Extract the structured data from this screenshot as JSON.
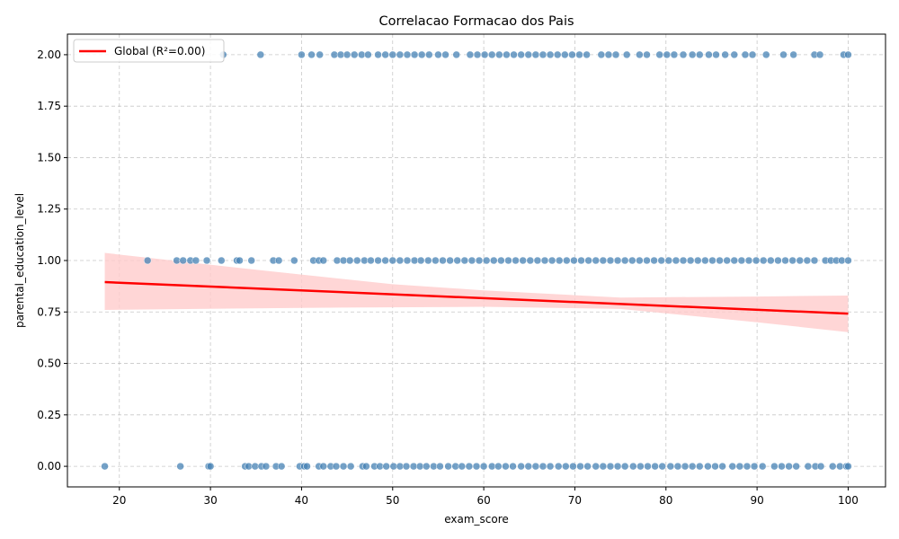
{
  "chart_data": {
    "type": "scatter",
    "title": "Correlacao Formacao dos Pais",
    "xlabel": "exam_score",
    "ylabel": "parental_education_level",
    "xlim": [
      14.3,
      104.1
    ],
    "ylim": [
      -0.1,
      2.1
    ],
    "xticks": [
      "20",
      "30",
      "40",
      "50",
      "60",
      "70",
      "80",
      "90",
      "100"
    ],
    "yticks": [
      "0.00",
      "0.25",
      "0.50",
      "0.75",
      "1.00",
      "1.25",
      "1.50",
      "1.75",
      "2.00"
    ],
    "grid": true,
    "legend_position": "top-left",
    "colors": {
      "points": "#4682b4",
      "line": "#ff0000",
      "band": "#ffcccc"
    },
    "series": [
      {
        "name": "",
        "type": "scatter",
        "points": [
          {
            "x": 18.4,
            "y": 0
          },
          {
            "x": 26.7,
            "y": 0
          },
          {
            "x": 29.8,
            "y": 0
          },
          {
            "x": 30.0,
            "y": 0
          },
          {
            "x": 33.8,
            "y": 0
          },
          {
            "x": 34.2,
            "y": 0
          },
          {
            "x": 34.9,
            "y": 0
          },
          {
            "x": 35.6,
            "y": 0
          },
          {
            "x": 36.1,
            "y": 0
          },
          {
            "x": 37.2,
            "y": 0
          },
          {
            "x": 37.8,
            "y": 0
          },
          {
            "x": 39.8,
            "y": 0
          },
          {
            "x": 40.3,
            "y": 0
          },
          {
            "x": 40.6,
            "y": 0
          },
          {
            "x": 41.9,
            "y": 0
          },
          {
            "x": 42.4,
            "y": 0
          },
          {
            "x": 43.2,
            "y": 0
          },
          {
            "x": 43.8,
            "y": 0
          },
          {
            "x": 44.6,
            "y": 0
          },
          {
            "x": 45.4,
            "y": 0
          },
          {
            "x": 46.7,
            "y": 0
          },
          {
            "x": 47.1,
            "y": 0
          },
          {
            "x": 48.0,
            "y": 0
          },
          {
            "x": 48.6,
            "y": 0
          },
          {
            "x": 49.3,
            "y": 0
          },
          {
            "x": 50.1,
            "y": 0
          },
          {
            "x": 50.8,
            "y": 0
          },
          {
            "x": 51.5,
            "y": 0
          },
          {
            "x": 52.3,
            "y": 0
          },
          {
            "x": 53.0,
            "y": 0
          },
          {
            "x": 53.7,
            "y": 0
          },
          {
            "x": 54.5,
            "y": 0
          },
          {
            "x": 55.2,
            "y": 0
          },
          {
            "x": 56.1,
            "y": 0
          },
          {
            "x": 56.9,
            "y": 0
          },
          {
            "x": 57.6,
            "y": 0
          },
          {
            "x": 58.4,
            "y": 0
          },
          {
            "x": 59.2,
            "y": 0
          },
          {
            "x": 60.0,
            "y": 0
          },
          {
            "x": 60.9,
            "y": 0
          },
          {
            "x": 61.6,
            "y": 0
          },
          {
            "x": 62.4,
            "y": 0
          },
          {
            "x": 63.2,
            "y": 0
          },
          {
            "x": 64.1,
            "y": 0
          },
          {
            "x": 64.9,
            "y": 0
          },
          {
            "x": 65.7,
            "y": 0
          },
          {
            "x": 66.5,
            "y": 0
          },
          {
            "x": 67.3,
            "y": 0
          },
          {
            "x": 68.2,
            "y": 0
          },
          {
            "x": 69.0,
            "y": 0
          },
          {
            "x": 69.8,
            "y": 0
          },
          {
            "x": 70.6,
            "y": 0
          },
          {
            "x": 71.4,
            "y": 0
          },
          {
            "x": 72.3,
            "y": 0
          },
          {
            "x": 73.1,
            "y": 0
          },
          {
            "x": 73.9,
            "y": 0
          },
          {
            "x": 74.7,
            "y": 0
          },
          {
            "x": 75.5,
            "y": 0
          },
          {
            "x": 76.4,
            "y": 0
          },
          {
            "x": 77.2,
            "y": 0
          },
          {
            "x": 78.0,
            "y": 0
          },
          {
            "x": 78.8,
            "y": 0
          },
          {
            "x": 79.6,
            "y": 0
          },
          {
            "x": 80.5,
            "y": 0
          },
          {
            "x": 81.3,
            "y": 0
          },
          {
            "x": 82.1,
            "y": 0
          },
          {
            "x": 82.9,
            "y": 0
          },
          {
            "x": 83.7,
            "y": 0
          },
          {
            "x": 84.6,
            "y": 0
          },
          {
            "x": 85.4,
            "y": 0
          },
          {
            "x": 86.2,
            "y": 0
          },
          {
            "x": 87.3,
            "y": 0
          },
          {
            "x": 88.1,
            "y": 0
          },
          {
            "x": 88.9,
            "y": 0
          },
          {
            "x": 89.7,
            "y": 0
          },
          {
            "x": 90.6,
            "y": 0
          },
          {
            "x": 91.9,
            "y": 0
          },
          {
            "x": 92.7,
            "y": 0
          },
          {
            "x": 93.5,
            "y": 0
          },
          {
            "x": 94.3,
            "y": 0
          },
          {
            "x": 95.6,
            "y": 0
          },
          {
            "x": 96.4,
            "y": 0
          },
          {
            "x": 97.0,
            "y": 0
          },
          {
            "x": 98.3,
            "y": 0
          },
          {
            "x": 99.1,
            "y": 0
          },
          {
            "x": 99.8,
            "y": 0
          },
          {
            "x": 100.0,
            "y": 0
          },
          {
            "x": 23.1,
            "y": 1
          },
          {
            "x": 26.3,
            "y": 1
          },
          {
            "x": 27.0,
            "y": 1
          },
          {
            "x": 27.8,
            "y": 1
          },
          {
            "x": 28.4,
            "y": 1
          },
          {
            "x": 29.6,
            "y": 1
          },
          {
            "x": 31.2,
            "y": 1
          },
          {
            "x": 32.9,
            "y": 1
          },
          {
            "x": 33.2,
            "y": 1
          },
          {
            "x": 34.5,
            "y": 1
          },
          {
            "x": 36.9,
            "y": 1
          },
          {
            "x": 37.5,
            "y": 1
          },
          {
            "x": 39.2,
            "y": 1
          },
          {
            "x": 41.3,
            "y": 1
          },
          {
            "x": 41.9,
            "y": 1
          },
          {
            "x": 42.4,
            "y": 1
          },
          {
            "x": 43.9,
            "y": 1
          },
          {
            "x": 44.6,
            "y": 1
          },
          {
            "x": 45.3,
            "y": 1
          },
          {
            "x": 46.1,
            "y": 1
          },
          {
            "x": 46.9,
            "y": 1
          },
          {
            "x": 47.6,
            "y": 1
          },
          {
            "x": 48.4,
            "y": 1
          },
          {
            "x": 49.2,
            "y": 1
          },
          {
            "x": 50.0,
            "y": 1
          },
          {
            "x": 50.8,
            "y": 1
          },
          {
            "x": 51.6,
            "y": 1
          },
          {
            "x": 52.4,
            "y": 1
          },
          {
            "x": 53.1,
            "y": 1
          },
          {
            "x": 53.9,
            "y": 1
          },
          {
            "x": 54.7,
            "y": 1
          },
          {
            "x": 55.5,
            "y": 1
          },
          {
            "x": 56.3,
            "y": 1
          },
          {
            "x": 57.1,
            "y": 1
          },
          {
            "x": 57.9,
            "y": 1
          },
          {
            "x": 58.7,
            "y": 1
          },
          {
            "x": 59.5,
            "y": 1
          },
          {
            "x": 60.3,
            "y": 1
          },
          {
            "x": 61.1,
            "y": 1
          },
          {
            "x": 61.9,
            "y": 1
          },
          {
            "x": 62.7,
            "y": 1
          },
          {
            "x": 63.5,
            "y": 1
          },
          {
            "x": 64.3,
            "y": 1
          },
          {
            "x": 65.1,
            "y": 1
          },
          {
            "x": 65.9,
            "y": 1
          },
          {
            "x": 66.7,
            "y": 1
          },
          {
            "x": 67.5,
            "y": 1
          },
          {
            "x": 68.3,
            "y": 1
          },
          {
            "x": 69.1,
            "y": 1
          },
          {
            "x": 69.9,
            "y": 1
          },
          {
            "x": 70.7,
            "y": 1
          },
          {
            "x": 71.5,
            "y": 1
          },
          {
            "x": 72.3,
            "y": 1
          },
          {
            "x": 73.1,
            "y": 1
          },
          {
            "x": 73.9,
            "y": 1
          },
          {
            "x": 74.7,
            "y": 1
          },
          {
            "x": 75.5,
            "y": 1
          },
          {
            "x": 76.3,
            "y": 1
          },
          {
            "x": 77.1,
            "y": 1
          },
          {
            "x": 77.9,
            "y": 1
          },
          {
            "x": 78.7,
            "y": 1
          },
          {
            "x": 79.5,
            "y": 1
          },
          {
            "x": 80.3,
            "y": 1
          },
          {
            "x": 81.1,
            "y": 1
          },
          {
            "x": 81.9,
            "y": 1
          },
          {
            "x": 82.7,
            "y": 1
          },
          {
            "x": 83.5,
            "y": 1
          },
          {
            "x": 84.3,
            "y": 1
          },
          {
            "x": 85.1,
            "y": 1
          },
          {
            "x": 85.9,
            "y": 1
          },
          {
            "x": 86.7,
            "y": 1
          },
          {
            "x": 87.5,
            "y": 1
          },
          {
            "x": 88.3,
            "y": 1
          },
          {
            "x": 89.1,
            "y": 1
          },
          {
            "x": 89.9,
            "y": 1
          },
          {
            "x": 90.7,
            "y": 1
          },
          {
            "x": 91.5,
            "y": 1
          },
          {
            "x": 92.3,
            "y": 1
          },
          {
            "x": 93.1,
            "y": 1
          },
          {
            "x": 93.9,
            "y": 1
          },
          {
            "x": 94.7,
            "y": 1
          },
          {
            "x": 95.5,
            "y": 1
          },
          {
            "x": 96.3,
            "y": 1
          },
          {
            "x": 97.5,
            "y": 1
          },
          {
            "x": 98.1,
            "y": 1
          },
          {
            "x": 98.7,
            "y": 1
          },
          {
            "x": 99.3,
            "y": 1
          },
          {
            "x": 100.0,
            "y": 1
          },
          {
            "x": 31.4,
            "y": 2
          },
          {
            "x": 35.5,
            "y": 2
          },
          {
            "x": 40.0,
            "y": 2
          },
          {
            "x": 41.1,
            "y": 2
          },
          {
            "x": 42.0,
            "y": 2
          },
          {
            "x": 43.6,
            "y": 2
          },
          {
            "x": 44.3,
            "y": 2
          },
          {
            "x": 45.0,
            "y": 2
          },
          {
            "x": 45.8,
            "y": 2
          },
          {
            "x": 46.6,
            "y": 2
          },
          {
            "x": 47.3,
            "y": 2
          },
          {
            "x": 48.4,
            "y": 2
          },
          {
            "x": 49.2,
            "y": 2
          },
          {
            "x": 50.0,
            "y": 2
          },
          {
            "x": 50.8,
            "y": 2
          },
          {
            "x": 51.6,
            "y": 2
          },
          {
            "x": 52.4,
            "y": 2
          },
          {
            "x": 53.2,
            "y": 2
          },
          {
            "x": 54.0,
            "y": 2
          },
          {
            "x": 55.0,
            "y": 2
          },
          {
            "x": 55.8,
            "y": 2
          },
          {
            "x": 57.0,
            "y": 2
          },
          {
            "x": 58.5,
            "y": 2
          },
          {
            "x": 59.3,
            "y": 2
          },
          {
            "x": 60.1,
            "y": 2
          },
          {
            "x": 60.9,
            "y": 2
          },
          {
            "x": 61.7,
            "y": 2
          },
          {
            "x": 62.5,
            "y": 2
          },
          {
            "x": 63.3,
            "y": 2
          },
          {
            "x": 64.1,
            "y": 2
          },
          {
            "x": 64.9,
            "y": 2
          },
          {
            "x": 65.7,
            "y": 2
          },
          {
            "x": 66.5,
            "y": 2
          },
          {
            "x": 67.3,
            "y": 2
          },
          {
            "x": 68.1,
            "y": 2
          },
          {
            "x": 68.9,
            "y": 2
          },
          {
            "x": 69.7,
            "y": 2
          },
          {
            "x": 70.5,
            "y": 2
          },
          {
            "x": 71.3,
            "y": 2
          },
          {
            "x": 72.9,
            "y": 2
          },
          {
            "x": 73.7,
            "y": 2
          },
          {
            "x": 74.5,
            "y": 2
          },
          {
            "x": 75.7,
            "y": 2
          },
          {
            "x": 77.1,
            "y": 2
          },
          {
            "x": 77.9,
            "y": 2
          },
          {
            "x": 79.3,
            "y": 2
          },
          {
            "x": 80.1,
            "y": 2
          },
          {
            "x": 80.9,
            "y": 2
          },
          {
            "x": 81.9,
            "y": 2
          },
          {
            "x": 82.9,
            "y": 2
          },
          {
            "x": 83.7,
            "y": 2
          },
          {
            "x": 84.7,
            "y": 2
          },
          {
            "x": 85.5,
            "y": 2
          },
          {
            "x": 86.5,
            "y": 2
          },
          {
            "x": 87.5,
            "y": 2
          },
          {
            "x": 88.7,
            "y": 2
          },
          {
            "x": 89.5,
            "y": 2
          },
          {
            "x": 91.0,
            "y": 2
          },
          {
            "x": 92.9,
            "y": 2
          },
          {
            "x": 94.0,
            "y": 2
          },
          {
            "x": 96.3,
            "y": 2
          },
          {
            "x": 96.9,
            "y": 2
          },
          {
            "x": 99.5,
            "y": 2
          },
          {
            "x": 100.0,
            "y": 2
          }
        ]
      },
      {
        "name": "Global (R²=0.00)",
        "type": "line",
        "points": [
          {
            "x": 18.4,
            "y": 0.895
          },
          {
            "x": 100.0,
            "y": 0.742
          }
        ],
        "ci_lower": [
          {
            "x": 18.4,
            "y": 0.76
          },
          {
            "x": 40.0,
            "y": 0.77
          },
          {
            "x": 60.0,
            "y": 0.775
          },
          {
            "x": 75.0,
            "y": 0.765
          },
          {
            "x": 90.0,
            "y": 0.7
          },
          {
            "x": 100.0,
            "y": 0.652
          }
        ],
        "ci_upper": [
          {
            "x": 18.4,
            "y": 1.037
          },
          {
            "x": 35.0,
            "y": 0.955
          },
          {
            "x": 50.0,
            "y": 0.885
          },
          {
            "x": 60.0,
            "y": 0.855
          },
          {
            "x": 75.0,
            "y": 0.82
          },
          {
            "x": 90.0,
            "y": 0.825
          },
          {
            "x": 100.0,
            "y": 0.83
          }
        ]
      }
    ]
  }
}
